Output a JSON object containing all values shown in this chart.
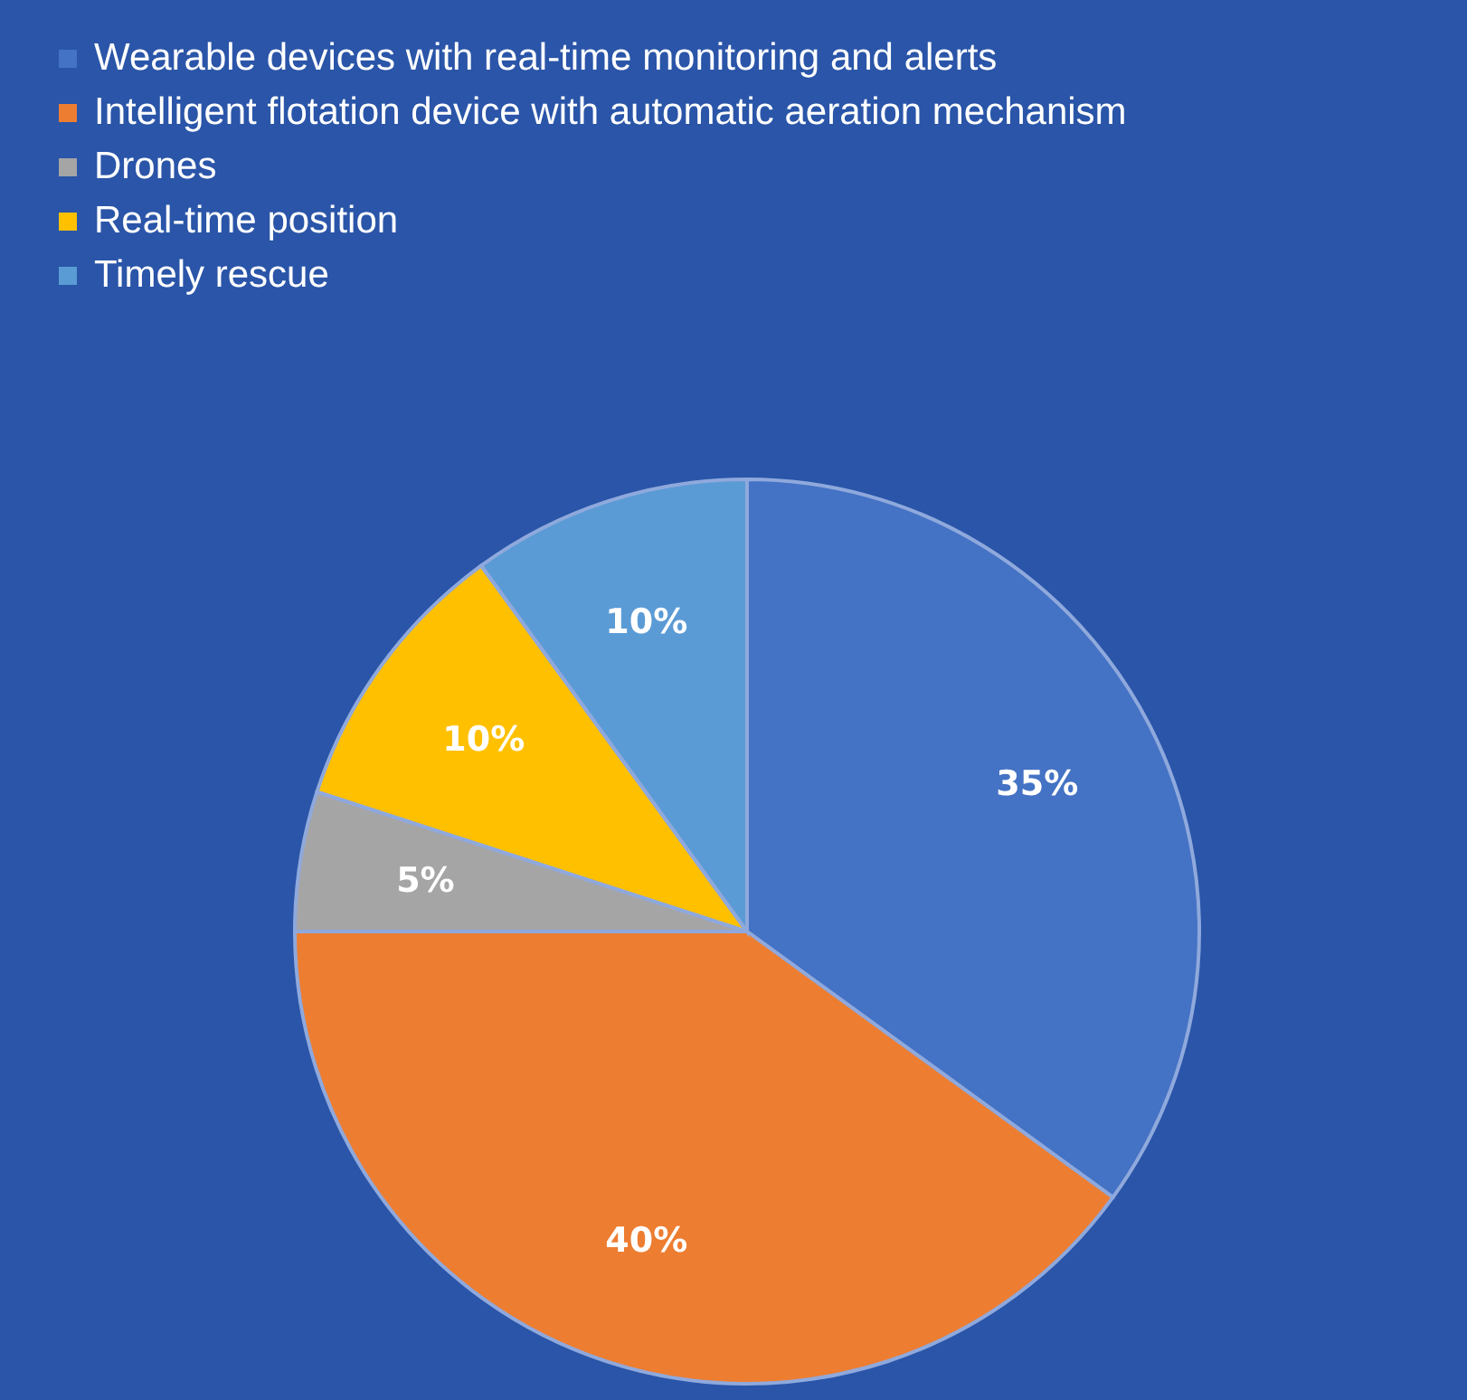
{
  "chart_data": {
    "type": "pie",
    "categories": [
      "Wearable devices with real-time monitoring and alerts",
      "Intelligent flotation device with automatic aeration mechanism",
      "Drones",
      "Real-time position",
      "Timely rescue"
    ],
    "values": [
      35,
      40,
      5,
      10,
      10
    ],
    "colors": [
      "#4472c4",
      "#ed7d31",
      "#a5a5a5",
      "#ffc000",
      "#5b9bd5"
    ],
    "value_labels": [
      "35%",
      "40%",
      "5%",
      "10%",
      "10%"
    ],
    "legend": "top left"
  }
}
